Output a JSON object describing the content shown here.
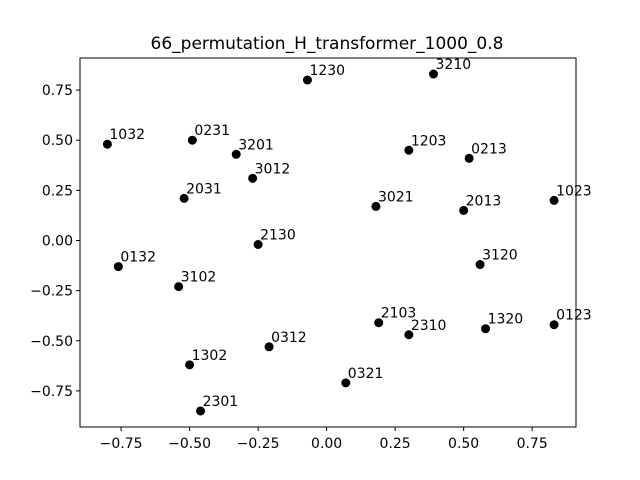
{
  "chart_data": {
    "type": "scatter",
    "title": "66_permutation_H_transformer_1000_0.8",
    "xlabel": "",
    "ylabel": "",
    "xlim": [
      -0.9,
      0.91
    ],
    "ylim": [
      -0.93,
      0.91
    ],
    "grid": false,
    "x_ticks": [
      -0.75,
      -0.5,
      -0.25,
      0.0,
      0.25,
      0.5,
      0.75
    ],
    "y_ticks": [
      -0.75,
      -0.5,
      -0.25,
      0.0,
      0.25,
      0.5,
      0.75
    ],
    "x_tick_labels": [
      "−0.75",
      "−0.50",
      "−0.25",
      "0.00",
      "0.25",
      "0.50",
      "0.75"
    ],
    "y_tick_labels": [
      "−0.75",
      "−0.50",
      "−0.25",
      "0.00",
      "0.25",
      "0.50",
      "0.75"
    ],
    "point_color": "#000000",
    "points": [
      {
        "label": "1230",
        "x": -0.07,
        "y": 0.8
      },
      {
        "label": "3210",
        "x": 0.39,
        "y": 0.83
      },
      {
        "label": "1032",
        "x": -0.8,
        "y": 0.48
      },
      {
        "label": "0231",
        "x": -0.49,
        "y": 0.5
      },
      {
        "label": "3201",
        "x": -0.33,
        "y": 0.43
      },
      {
        "label": "1203",
        "x": 0.3,
        "y": 0.45
      },
      {
        "label": "0213",
        "x": 0.52,
        "y": 0.41
      },
      {
        "label": "3012",
        "x": -0.27,
        "y": 0.31
      },
      {
        "label": "2031",
        "x": -0.52,
        "y": 0.21
      },
      {
        "label": "3021",
        "x": 0.18,
        "y": 0.17
      },
      {
        "label": "2013",
        "x": 0.5,
        "y": 0.15
      },
      {
        "label": "1023",
        "x": 0.83,
        "y": 0.2
      },
      {
        "label": "2130",
        "x": -0.25,
        "y": -0.02
      },
      {
        "label": "0132",
        "x": -0.76,
        "y": -0.13
      },
      {
        "label": "3120",
        "x": 0.56,
        "y": -0.12
      },
      {
        "label": "3102",
        "x": -0.54,
        "y": -0.23
      },
      {
        "label": "2103",
        "x": 0.19,
        "y": -0.41
      },
      {
        "label": "2310",
        "x": 0.3,
        "y": -0.47
      },
      {
        "label": "1320",
        "x": 0.58,
        "y": -0.44
      },
      {
        "label": "0123",
        "x": 0.83,
        "y": -0.42
      },
      {
        "label": "0312",
        "x": -0.21,
        "y": -0.53
      },
      {
        "label": "1302",
        "x": -0.5,
        "y": -0.62
      },
      {
        "label": "0321",
        "x": 0.07,
        "y": -0.71
      },
      {
        "label": "2301",
        "x": -0.46,
        "y": -0.85
      }
    ]
  }
}
